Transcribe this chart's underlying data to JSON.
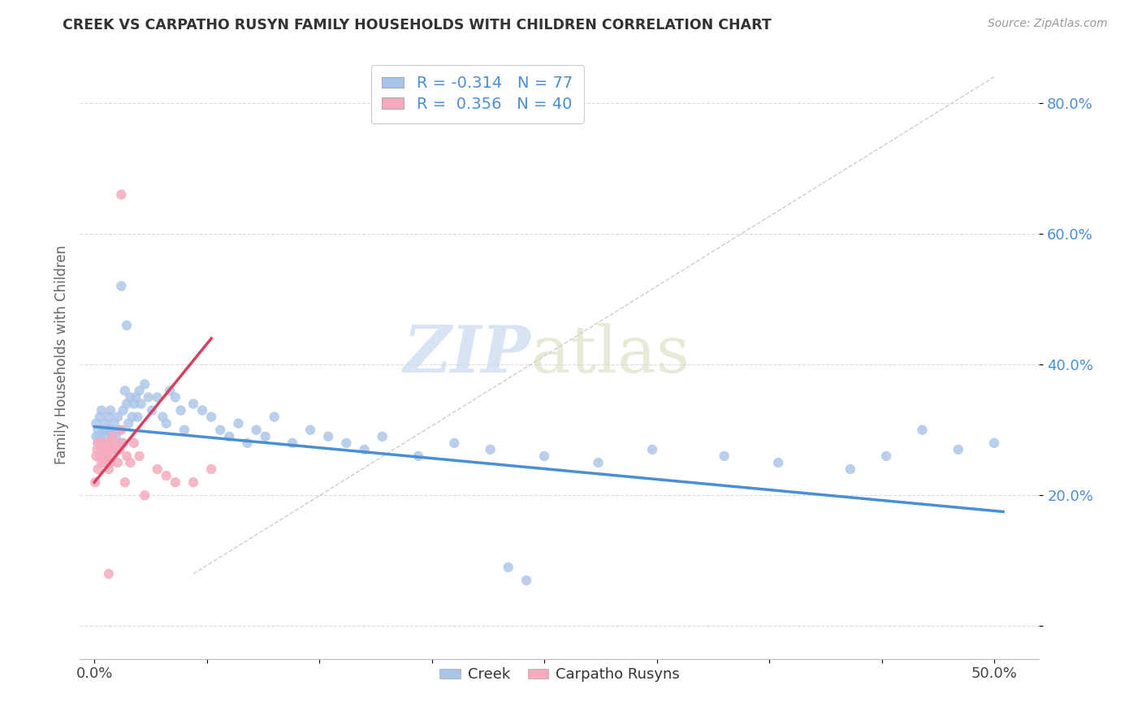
{
  "title": "CREEK VS CARPATHO RUSYN FAMILY HOUSEHOLDS WITH CHILDREN CORRELATION CHART",
  "source": "Source: ZipAtlas.com",
  "ylabel": "Family Households with Children",
  "yticks": [
    0.0,
    0.2,
    0.4,
    0.6,
    0.8
  ],
  "ytick_labels": [
    "",
    "20.0%",
    "40.0%",
    "60.0%",
    "80.0%"
  ],
  "xticks": [
    0.0,
    0.0625,
    0.125,
    0.1875,
    0.25,
    0.3125,
    0.375,
    0.4375,
    0.5
  ],
  "xlim": [
    -0.008,
    0.525
  ],
  "ylim": [
    -0.05,
    0.88
  ],
  "creek_color": "#a8c4e8",
  "rusyn_color": "#f5abbe",
  "creek_line_color": "#4a8fd4",
  "rusyn_line_color": "#d94060",
  "ref_line_color": "#c8c8c8",
  "background_color": "#ffffff",
  "grid_color": "#d8d8d8",
  "creek_trend_x": [
    0.0,
    0.505
  ],
  "creek_trend_y": [
    0.305,
    0.175
  ],
  "rusyn_trend_x": [
    0.0,
    0.065
  ],
  "rusyn_trend_y": [
    0.22,
    0.44
  ],
  "diag_line_x": [
    0.055,
    0.5
  ],
  "diag_line_y": [
    0.08,
    0.84
  ],
  "creek_scatter": {
    "x": [
      0.001,
      0.001,
      0.002,
      0.002,
      0.003,
      0.003,
      0.004,
      0.004,
      0.005,
      0.005,
      0.006,
      0.006,
      0.007,
      0.007,
      0.008,
      0.008,
      0.009,
      0.009,
      0.01,
      0.01,
      0.011,
      0.012,
      0.013,
      0.014,
      0.015,
      0.016,
      0.017,
      0.018,
      0.019,
      0.02,
      0.021,
      0.022,
      0.023,
      0.024,
      0.025,
      0.026,
      0.028,
      0.03,
      0.032,
      0.035,
      0.038,
      0.04,
      0.042,
      0.045,
      0.048,
      0.05,
      0.055,
      0.06,
      0.065,
      0.07,
      0.075,
      0.08,
      0.085,
      0.09,
      0.095,
      0.1,
      0.11,
      0.12,
      0.13,
      0.14,
      0.15,
      0.16,
      0.18,
      0.2,
      0.22,
      0.25,
      0.28,
      0.31,
      0.35,
      0.38,
      0.42,
      0.44,
      0.46,
      0.48,
      0.5,
      0.015,
      0.018,
      0.23,
      0.24
    ],
    "y": [
      0.29,
      0.31,
      0.28,
      0.3,
      0.29,
      0.32,
      0.27,
      0.33,
      0.28,
      0.3,
      0.29,
      0.31,
      0.3,
      0.27,
      0.3,
      0.32,
      0.28,
      0.33,
      0.29,
      0.3,
      0.31,
      0.29,
      0.32,
      0.3,
      0.28,
      0.33,
      0.36,
      0.34,
      0.31,
      0.35,
      0.32,
      0.34,
      0.35,
      0.32,
      0.36,
      0.34,
      0.37,
      0.35,
      0.33,
      0.35,
      0.32,
      0.31,
      0.36,
      0.35,
      0.33,
      0.3,
      0.34,
      0.33,
      0.32,
      0.3,
      0.29,
      0.31,
      0.28,
      0.3,
      0.29,
      0.32,
      0.28,
      0.3,
      0.29,
      0.28,
      0.27,
      0.29,
      0.26,
      0.28,
      0.27,
      0.26,
      0.25,
      0.27,
      0.26,
      0.25,
      0.24,
      0.26,
      0.3,
      0.27,
      0.28,
      0.52,
      0.46,
      0.09,
      0.07
    ]
  },
  "rusyn_scatter": {
    "x": [
      0.0005,
      0.001,
      0.0015,
      0.002,
      0.002,
      0.003,
      0.003,
      0.004,
      0.004,
      0.005,
      0.005,
      0.006,
      0.006,
      0.007,
      0.007,
      0.008,
      0.008,
      0.009,
      0.009,
      0.01,
      0.01,
      0.011,
      0.012,
      0.013,
      0.014,
      0.015,
      0.016,
      0.017,
      0.018,
      0.02,
      0.022,
      0.025,
      0.028,
      0.035,
      0.04,
      0.045,
      0.055,
      0.065,
      0.015,
      0.008
    ],
    "y": [
      0.22,
      0.26,
      0.27,
      0.28,
      0.24,
      0.26,
      0.28,
      0.25,
      0.27,
      0.26,
      0.28,
      0.27,
      0.25,
      0.28,
      0.26,
      0.24,
      0.28,
      0.25,
      0.27,
      0.26,
      0.29,
      0.27,
      0.28,
      0.25,
      0.27,
      0.3,
      0.28,
      0.22,
      0.26,
      0.25,
      0.28,
      0.26,
      0.2,
      0.24,
      0.23,
      0.22,
      0.22,
      0.24,
      0.66,
      0.08
    ]
  }
}
